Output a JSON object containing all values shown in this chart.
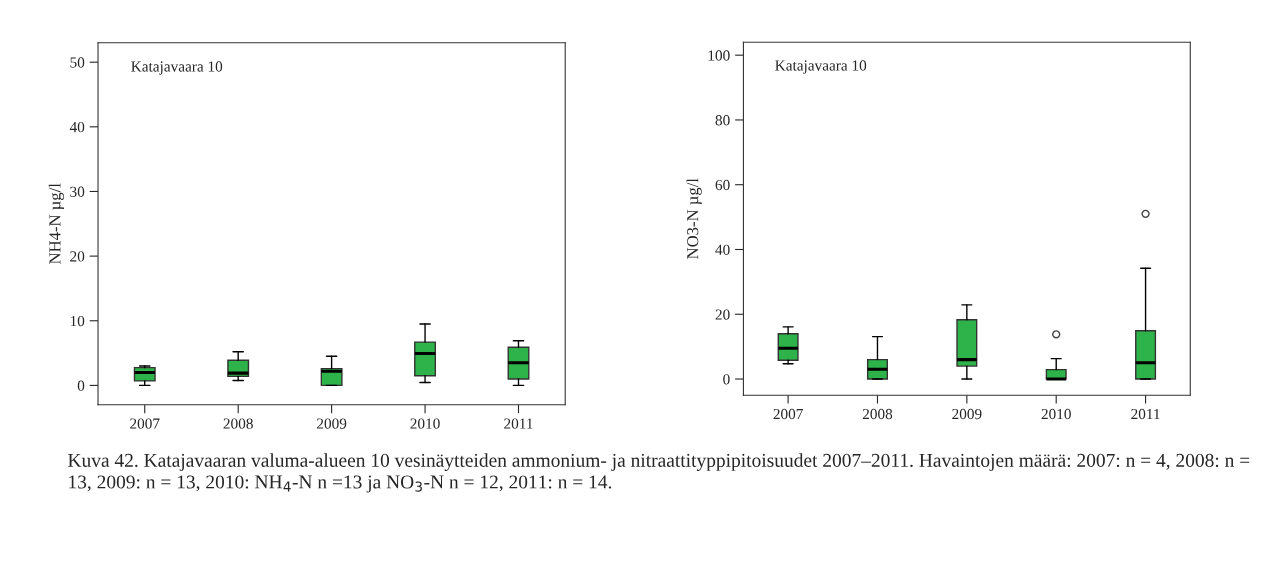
{
  "chart_data": [
    {
      "type": "box",
      "title": "Katajavaara 10",
      "ylabel": "NH4-N µg/l",
      "categories": [
        "2007",
        "2008",
        "2009",
        "2010",
        "2011"
      ],
      "color": "#2db34a",
      "ylim": [
        -3,
        53
      ],
      "yticks": [
        0,
        10,
        20,
        30,
        40,
        50
      ],
      "boxes": [
        {
          "low": 0,
          "q1": 0.7,
          "median": 2.0,
          "q3": 2.75,
          "high": 3.0
        },
        {
          "low": 0.75,
          "q1": 1.4,
          "median": 1.9,
          "q3": 3.9,
          "high": 5.2
        },
        {
          "low": 0,
          "q1": 0,
          "median": 2.2,
          "q3": 2.6,
          "high": 4.5
        },
        {
          "low": 0.45,
          "q1": 1.5,
          "median": 4.95,
          "q3": 6.7,
          "high": 9.5
        },
        {
          "low": 0,
          "q1": 1.0,
          "median": 3.5,
          "q3": 5.9,
          "high": 6.9
        }
      ],
      "annotations": [
        "Kuva 42. Katajavaaran valuma-alueen 10 vesinäytteiden ammonium- ja nitraattityppipitoisuudet 2007–2011. Havaintojen määrä: 2007: n = 4, 2008: n = 13, 2009: n = 13, 2010: NH$_{4}$-N n =13 ja NO$_{3}$-N n = 12, 2011: n = 14."
      ]
    },
    {
      "type": "box",
      "title": "Katajavaara 10",
      "ylabel": "NO3-N µg/l",
      "categories": [
        "2007",
        "2008",
        "2009",
        "2010",
        "2011"
      ],
      "color": "#2db34a",
      "ylim": [
        -5,
        104
      ],
      "yticks": [
        0,
        20,
        40,
        60,
        80,
        100
      ],
      "boxes": [
        {
          "low": 4.7,
          "q1": 5.8,
          "median": 9.5,
          "q3": 14.0,
          "high": 16.1
        },
        {
          "low": 0,
          "q1": 0,
          "median": 3.0,
          "q3": 6.0,
          "high": 13.1
        },
        {
          "low": 0,
          "q1": 4.0,
          "median": 6.0,
          "q3": 18.3,
          "high": 22.9
        },
        {
          "low": 0,
          "q1": 0,
          "median": 0,
          "q3": 2.9,
          "high": 6.3,
          "outliers": [
            13.8
          ]
        },
        {
          "low": 0,
          "q1": 0,
          "median": 5.0,
          "q3": 14.9,
          "high": 34.2,
          "outliers": [
            51.0
          ]
        }
      ]
    }
  ]
}
